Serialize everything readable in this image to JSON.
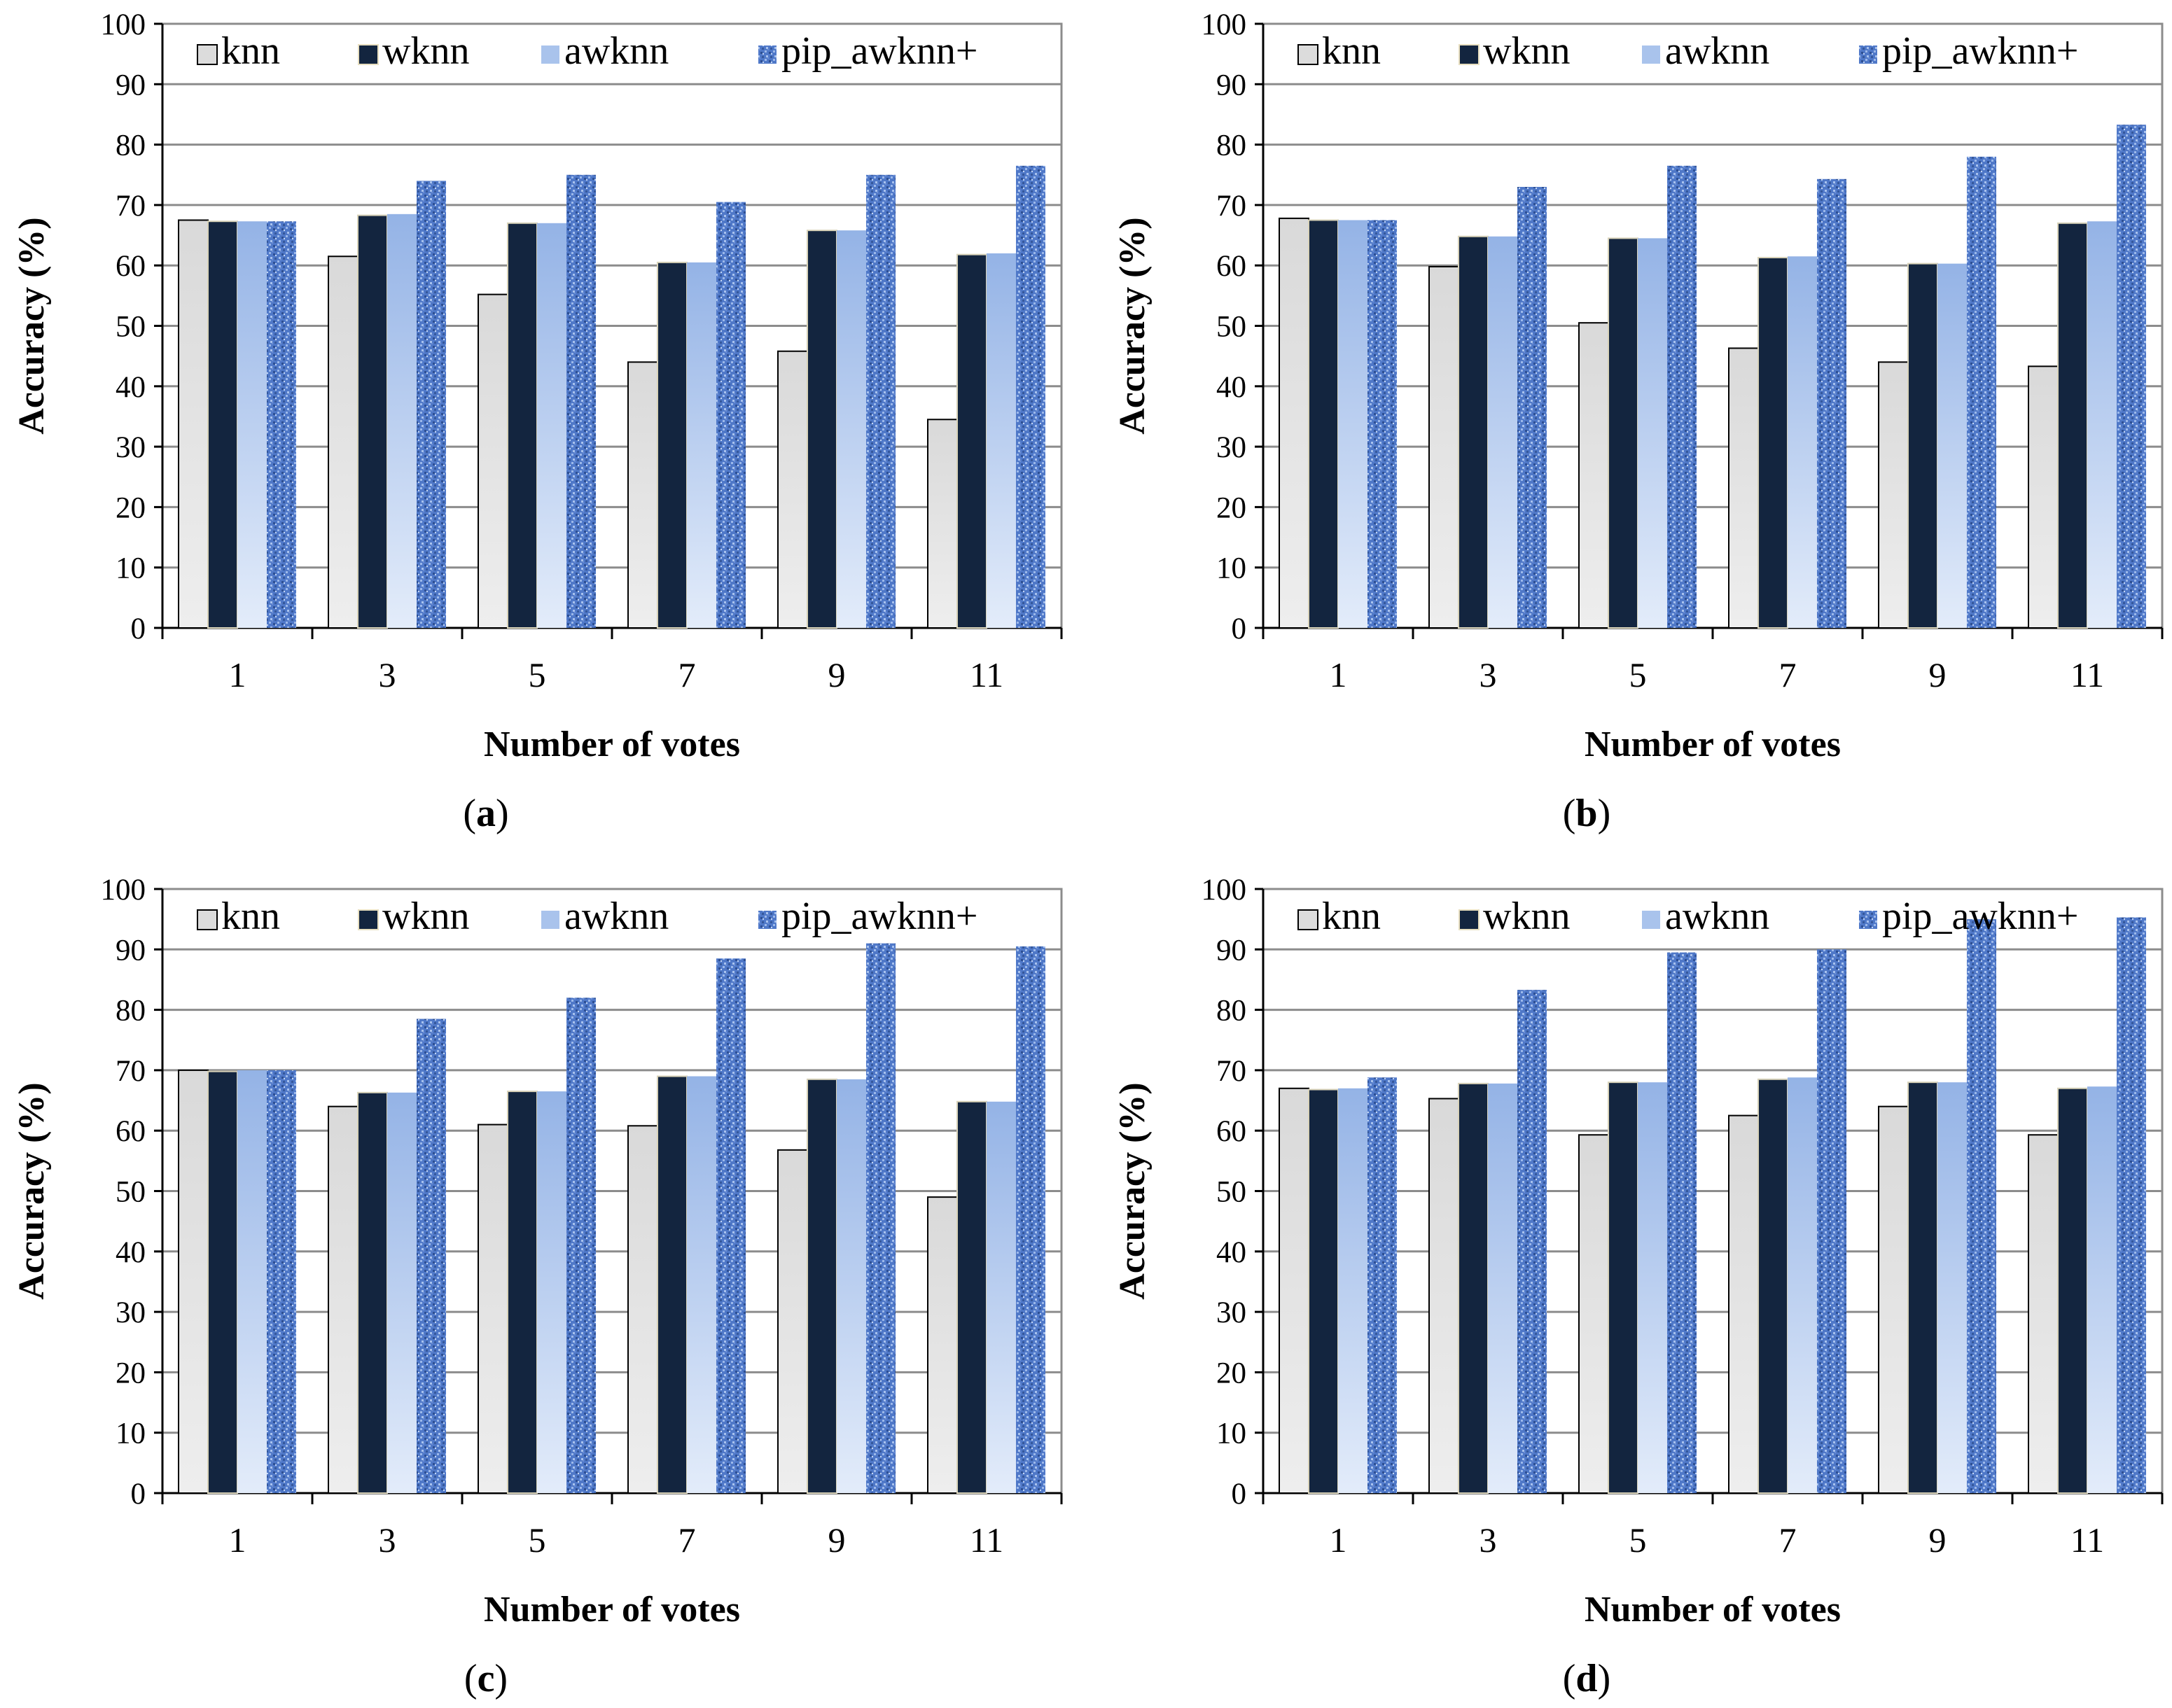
{
  "chart_data": [
    {
      "type": "bar",
      "panel_label": "a",
      "categories": [
        "1",
        "3",
        "5",
        "7",
        "9",
        "11"
      ],
      "xlabel": "Number of votes",
      "ylabel": "Accuracy (%)",
      "ylim": [
        0,
        100
      ],
      "yticks": [
        0,
        10,
        20,
        30,
        40,
        50,
        60,
        70,
        80,
        90,
        100
      ],
      "grid": true,
      "legend_position": "top",
      "series": [
        {
          "name": "knn",
          "values": [
            67.5,
            61.5,
            55.2,
            44.0,
            45.8,
            34.5
          ]
        },
        {
          "name": "wknn",
          "values": [
            67.3,
            68.3,
            67.0,
            60.5,
            65.8,
            61.8
          ]
        },
        {
          "name": "awknn",
          "values": [
            67.3,
            68.5,
            67.0,
            60.5,
            65.8,
            62.0
          ]
        },
        {
          "name": "pip_awknn+",
          "values": [
            67.3,
            74.0,
            75.0,
            70.5,
            75.0,
            76.5
          ]
        }
      ]
    },
    {
      "type": "bar",
      "panel_label": "b",
      "categories": [
        "1",
        "3",
        "5",
        "7",
        "9",
        "11"
      ],
      "xlabel": "Number of votes",
      "ylabel": "Accuracy (%)",
      "ylim": [
        0,
        100
      ],
      "yticks": [
        0,
        10,
        20,
        30,
        40,
        50,
        60,
        70,
        80,
        90,
        100
      ],
      "grid": true,
      "legend_position": "top",
      "series": [
        {
          "name": "knn",
          "values": [
            67.8,
            59.8,
            50.5,
            46.3,
            44.0,
            43.3
          ]
        },
        {
          "name": "wknn",
          "values": [
            67.5,
            64.8,
            64.5,
            61.3,
            60.3,
            67.0
          ]
        },
        {
          "name": "awknn",
          "values": [
            67.5,
            64.8,
            64.5,
            61.5,
            60.3,
            67.3
          ]
        },
        {
          "name": "pip_awknn+",
          "values": [
            67.5,
            73.0,
            76.5,
            74.3,
            78.0,
            83.3
          ]
        }
      ]
    },
    {
      "type": "bar",
      "panel_label": "c",
      "categories": [
        "1",
        "3",
        "5",
        "7",
        "9",
        "11"
      ],
      "xlabel": "Number of votes",
      "ylabel": "Accuracy (%)",
      "ylim": [
        0,
        100
      ],
      "yticks": [
        0,
        10,
        20,
        30,
        40,
        50,
        60,
        70,
        80,
        90,
        100
      ],
      "grid": true,
      "legend_position": "top",
      "series": [
        {
          "name": "knn",
          "values": [
            70.0,
            64.0,
            61.0,
            60.8,
            56.8,
            49.0
          ]
        },
        {
          "name": "wknn",
          "values": [
            69.8,
            66.3,
            66.5,
            69.0,
            68.5,
            64.8
          ]
        },
        {
          "name": "awknn",
          "values": [
            70.0,
            66.3,
            66.5,
            69.0,
            68.5,
            64.8
          ]
        },
        {
          "name": "pip_awknn+",
          "values": [
            70.0,
            78.5,
            82.0,
            88.5,
            91.0,
            90.5
          ]
        }
      ]
    },
    {
      "type": "bar",
      "panel_label": "d",
      "categories": [
        "1",
        "3",
        "5",
        "7",
        "9",
        "11"
      ],
      "xlabel": "Number of votes",
      "ylabel": "Accuracy (%)",
      "ylim": [
        0,
        100
      ],
      "yticks": [
        0,
        10,
        20,
        30,
        40,
        50,
        60,
        70,
        80,
        90,
        100
      ],
      "grid": true,
      "legend_position": "top",
      "series": [
        {
          "name": "knn",
          "values": [
            67.0,
            65.3,
            59.3,
            62.5,
            64.0,
            59.3
          ]
        },
        {
          "name": "wknn",
          "values": [
            66.8,
            67.8,
            68.0,
            68.5,
            68.0,
            67.0
          ]
        },
        {
          "name": "awknn",
          "values": [
            67.0,
            67.8,
            68.0,
            68.8,
            68.0,
            67.3
          ]
        },
        {
          "name": "pip_awknn+",
          "values": [
            68.8,
            83.3,
            89.5,
            90.0,
            95.0,
            95.3
          ]
        }
      ]
    }
  ],
  "colors": {
    "knn": "#dcdcdc",
    "wknn": "#14263f",
    "awknn": "#a9c3ec",
    "pip_awknn+": "#4c74c4",
    "grid": "#8c8c8c",
    "axis": "#000000"
  }
}
